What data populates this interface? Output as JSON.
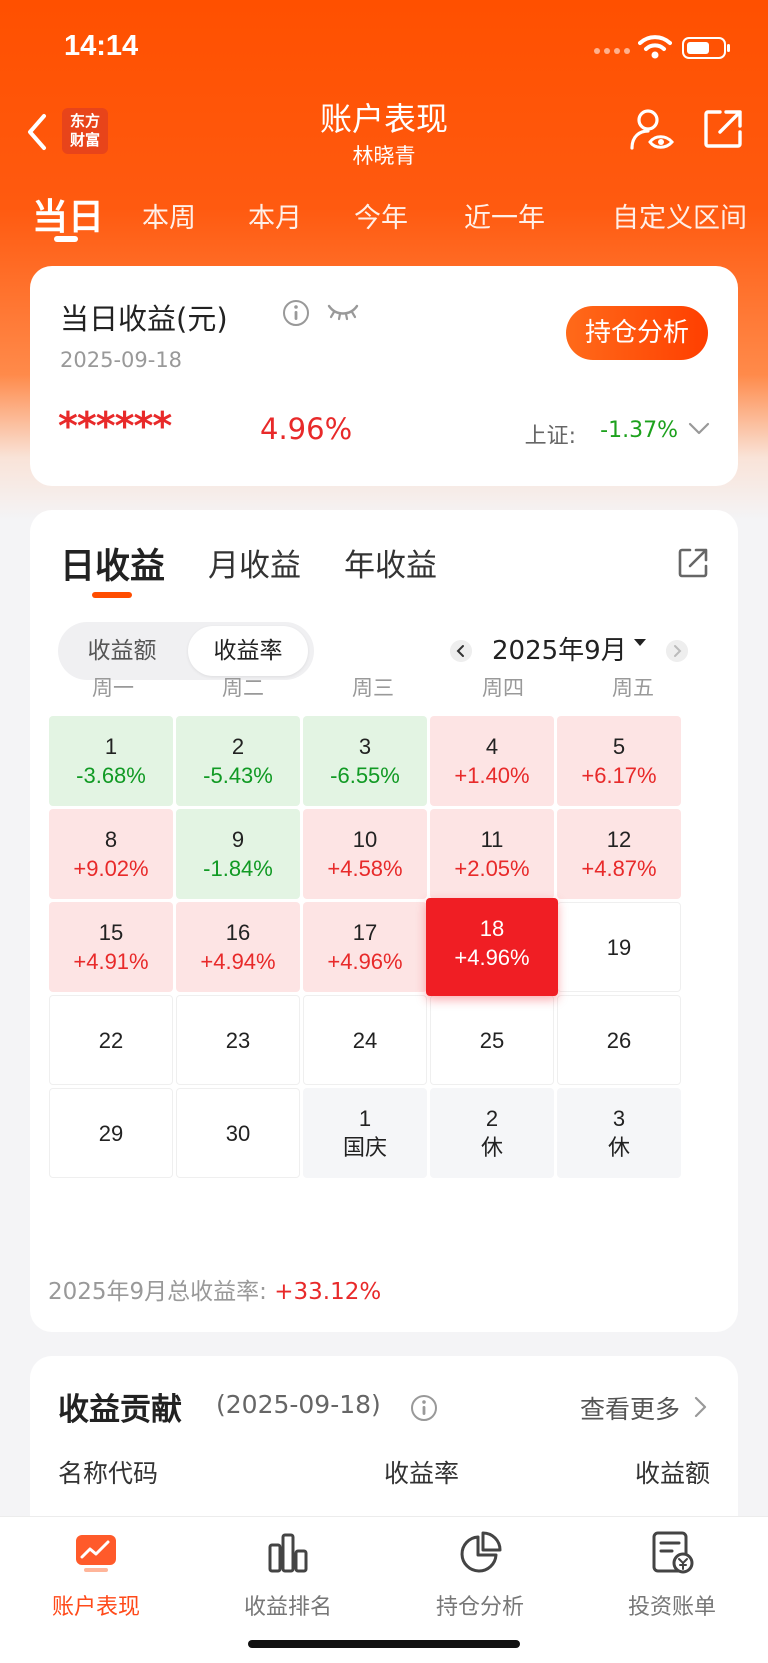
{
  "status_bar": {
    "time": "14:14"
  },
  "header": {
    "brand_logo": "东方\n财富",
    "title": "账户表现",
    "subtitle": "林晓青"
  },
  "period_tabs": [
    {
      "label": "当日",
      "active": true
    },
    {
      "label": "本周"
    },
    {
      "label": "本月"
    },
    {
      "label": "今年"
    },
    {
      "label": "近一年"
    },
    {
      "label": "自定义区间"
    }
  ],
  "income_card": {
    "title": "当日收益(元)",
    "date": "2025-09-18",
    "holdings_button": "持仓分析",
    "masked_amount": "******",
    "rate": "4.96%",
    "index_label": "上证:",
    "index_value": "-1.37%"
  },
  "calendar": {
    "tabs": [
      "日收益",
      "月收益",
      "年收益"
    ],
    "active_tab": 0,
    "toggle": [
      "收益额",
      "收益率"
    ],
    "toggle_active": 1,
    "month_label": "2025年9月",
    "weekdays": [
      "周一",
      "周二",
      "周三",
      "周四",
      "周五"
    ],
    "weeks": [
      [
        {
          "day": "1",
          "rate": "-3.68%",
          "kind": "neg"
        },
        {
          "day": "2",
          "rate": "-5.43%",
          "kind": "neg"
        },
        {
          "day": "3",
          "rate": "-6.55%",
          "kind": "neg"
        },
        {
          "day": "4",
          "rate": "+1.40%",
          "kind": "pos"
        },
        {
          "day": "5",
          "rate": "+6.17%",
          "kind": "pos"
        }
      ],
      [
        {
          "day": "8",
          "rate": "+9.02%",
          "kind": "pos"
        },
        {
          "day": "9",
          "rate": "-1.84%",
          "kind": "neg"
        },
        {
          "day": "10",
          "rate": "+4.58%",
          "kind": "pos"
        },
        {
          "day": "11",
          "rate": "+2.05%",
          "kind": "pos"
        },
        {
          "day": "12",
          "rate": "+4.87%",
          "kind": "pos"
        }
      ],
      [
        {
          "day": "15",
          "rate": "+4.91%",
          "kind": "pos"
        },
        {
          "day": "16",
          "rate": "+4.94%",
          "kind": "pos"
        },
        {
          "day": "17",
          "rate": "+4.96%",
          "kind": "pos"
        },
        {
          "day": "18",
          "rate": "+4.96%",
          "kind": "today"
        },
        {
          "day": "19",
          "rate": "",
          "kind": "empty"
        }
      ],
      [
        {
          "day": "22",
          "rate": "",
          "kind": "empty"
        },
        {
          "day": "23",
          "rate": "",
          "kind": "empty"
        },
        {
          "day": "24",
          "rate": "",
          "kind": "empty"
        },
        {
          "day": "25",
          "rate": "",
          "kind": "empty"
        },
        {
          "day": "26",
          "rate": "",
          "kind": "empty"
        }
      ],
      [
        {
          "day": "29",
          "rate": "",
          "kind": "empty"
        },
        {
          "day": "30",
          "rate": "",
          "kind": "empty"
        },
        {
          "day": "1",
          "rate": "国庆",
          "kind": "next"
        },
        {
          "day": "2",
          "rate": "休",
          "kind": "next"
        },
        {
          "day": "3",
          "rate": "休",
          "kind": "next"
        }
      ]
    ],
    "total_label": "2025年9月总收益率:",
    "total_value": "+33.12%"
  },
  "contribution": {
    "title": "收益贡献",
    "date": "(2025-09-18)",
    "more": "查看更多",
    "columns": [
      "名称代码",
      "收益率",
      "收益额"
    ]
  },
  "bottom_nav": [
    {
      "label": "账户表现",
      "icon": "chart-screen-icon",
      "active": true
    },
    {
      "label": "收益排名",
      "icon": "bar-chart-icon"
    },
    {
      "label": "持仓分析",
      "icon": "pie-chart-icon"
    },
    {
      "label": "投资账单",
      "icon": "bill-icon"
    }
  ],
  "colors": {
    "brand": "#ff5000",
    "up": "#e82a2a",
    "down": "#119a24",
    "today": "#f01e24"
  }
}
